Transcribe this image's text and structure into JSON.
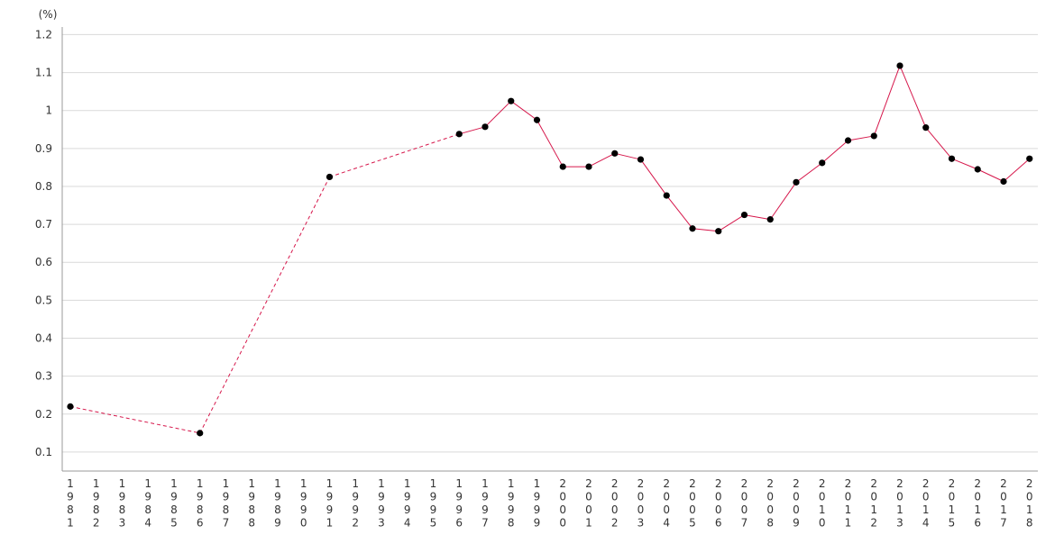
{
  "chart_data": {
    "type": "line",
    "title": "",
    "xlabel": "",
    "ylabel": "(%)",
    "ylim": [
      0.05,
      1.22
    ],
    "y_ticks": [
      0.1,
      0.2,
      0.3,
      0.4,
      0.5,
      0.6,
      0.7,
      0.8,
      0.9,
      1,
      1.1,
      1.2
    ],
    "grid": true,
    "categories": [
      "1981",
      "1982",
      "1983",
      "1984",
      "1985",
      "1986",
      "1987",
      "1988",
      "1989",
      "1990",
      "1991",
      "1992",
      "1993",
      "1994",
      "1995",
      "1996",
      "1997",
      "1998",
      "1999",
      "2000",
      "2001",
      "2002",
      "2003",
      "2004",
      "2005",
      "2006",
      "2007",
      "2008",
      "2009",
      "2010",
      "2011",
      "2012",
      "2013",
      "2014",
      "2015",
      "2016",
      "2017",
      "2018"
    ],
    "series": [
      {
        "color": "#d6174b",
        "values": [
          0.22,
          null,
          null,
          null,
          null,
          0.15,
          null,
          null,
          null,
          null,
          0.825,
          null,
          null,
          null,
          null,
          0.938,
          0.957,
          1.025,
          0.975,
          0.852,
          0.852,
          0.887,
          0.871,
          0.776,
          0.689,
          0.682,
          0.725,
          0.713,
          0.811,
          0.862,
          0.921,
          0.933,
          1.118,
          0.955,
          0.873,
          0.845,
          0.813,
          0.873
        ]
      }
    ]
  }
}
